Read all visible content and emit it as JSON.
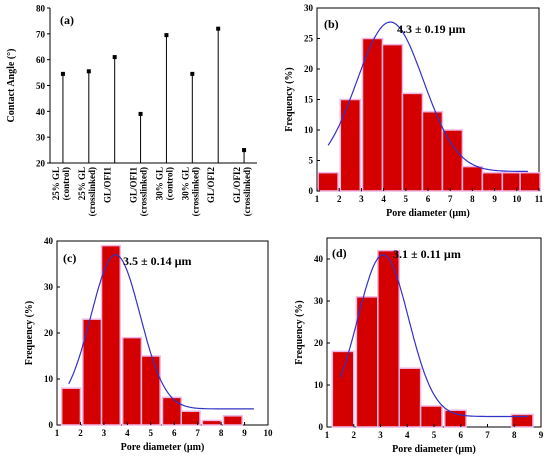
{
  "chart_data": [
    {
      "panel": "(a)",
      "type": "scatter",
      "xlabel": "",
      "ylabel": "Contact Angle (°)",
      "ylim": [
        20,
        80
      ],
      "yticks": [
        20,
        30,
        40,
        50,
        60,
        70,
        80
      ],
      "categories": [
        [
          "25% GL",
          "(control)"
        ],
        [
          "25% GL",
          "(crosslinked)"
        ],
        [
          "GL/OFI1",
          ""
        ],
        [
          "GL/OFI1",
          "(crosslinked)"
        ],
        [
          "30% GL",
          "(control)"
        ],
        [
          "30% GL",
          "(crosslinked)"
        ],
        [
          "GL/OFI2",
          ""
        ],
        [
          "GL/OFI2",
          "(crosslinked)"
        ]
      ],
      "values": [
        54.5,
        55.5,
        61,
        39,
        69.5,
        54.5,
        72,
        25
      ]
    },
    {
      "panel": "(b)",
      "type": "bar",
      "annotation": "4.3 ± 0.19 µm",
      "xlabel": "Pore diameter (µm)",
      "ylabel": "Frequency (%)",
      "xlim": [
        1,
        11
      ],
      "ylim": [
        0,
        30
      ],
      "xticks": [
        1,
        2,
        3,
        4,
        5,
        6,
        7,
        8,
        9,
        10,
        11
      ],
      "yticks": [
        0,
        5,
        10,
        15,
        20,
        25,
        30
      ],
      "bin_width": 0.9,
      "x": [
        1.5,
        2.5,
        3.5,
        4.4,
        5.3,
        6.2,
        7.1,
        8.0,
        8.9,
        9.8,
        10.6
      ],
      "values": [
        3,
        15,
        25,
        24,
        16,
        13,
        10,
        4,
        3,
        3,
        3
      ],
      "fit": {
        "amplitude": 24.5,
        "mean": 4.3,
        "sigma": 1.5,
        "baseline": 3.2,
        "range": [
          1.5,
          10.5
        ]
      }
    },
    {
      "panel": "(c)",
      "type": "bar",
      "annotation": "3.5 ± 0.14 µm",
      "xlabel": "Pore diameter (µm)",
      "ylabel": "Frequency (%)",
      "xlim": [
        1,
        10
      ],
      "ylim": [
        0,
        40
      ],
      "xticks": [
        1,
        2,
        3,
        4,
        5,
        6,
        7,
        8,
        9,
        10
      ],
      "yticks": [
        0,
        10,
        20,
        30,
        40
      ],
      "bin_width": 0.8,
      "x": [
        1.6,
        2.5,
        3.3,
        4.2,
        5.0,
        5.9,
        6.7,
        7.6,
        8.5,
        9.3
      ],
      "values": [
        8,
        23,
        39,
        19,
        15,
        6,
        3,
        1,
        2,
        0
      ],
      "fit": {
        "amplitude": 33.5,
        "mean": 3.5,
        "sigma": 1.05,
        "baseline": 3.5,
        "range": [
          1.5,
          9.4
        ]
      }
    },
    {
      "panel": "(d)",
      "type": "bar",
      "annotation": "3.1 ± 0.11 µm",
      "xlabel": "Pore diameter (µm)",
      "ylabel": "Frequency (%)",
      "xlim": [
        1,
        9
      ],
      "ylim": [
        0,
        45
      ],
      "xticks": [
        1,
        2,
        3,
        4,
        5,
        6,
        7,
        8,
        9
      ],
      "yticks": [
        0,
        10,
        20,
        30,
        40
      ],
      "bin_width": 0.8,
      "x": [
        1.6,
        2.5,
        3.3,
        4.1,
        4.9,
        5.8,
        6.6,
        7.4,
        8.3
      ],
      "values": [
        18,
        31,
        42,
        14,
        5,
        4,
        0,
        0,
        3
      ],
      "fit": {
        "amplitude": 38.5,
        "mean": 3.1,
        "sigma": 0.95,
        "baseline": 2.5,
        "range": [
          1.5,
          8.5
        ]
      }
    }
  ]
}
